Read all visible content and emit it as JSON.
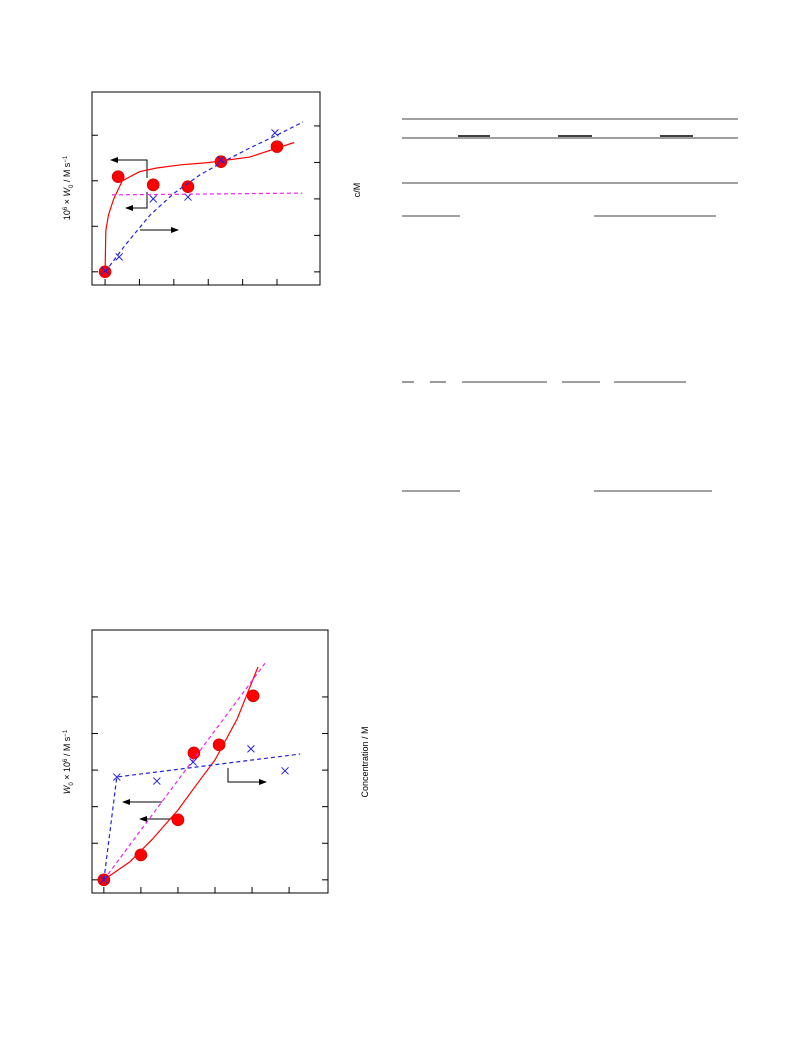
{
  "chart_data": [
    {
      "type": "scatter",
      "y_label_parts": [
        "10",
        "6",
        " × ",
        "W",
        "0",
        " / M s",
        "−1"
      ],
      "y2_label": "c/M",
      "xlim": [
        -0.38,
        6.25
      ],
      "xticks": [
        0,
        1,
        2,
        3,
        4,
        5
      ],
      "ylim": [
        -0.29,
        3.95
      ],
      "yticks": [
        0,
        1,
        2,
        3
      ],
      "y2lim": [
        -0.36,
        4.93
      ],
      "y2ticks": [
        0,
        1,
        2,
        3,
        4
      ],
      "series": [
        {
          "marker": "circle",
          "color": "#ff0000",
          "x": [
            0,
            0.38,
            1.4,
            2.41,
            3.37,
            5.0
          ],
          "values": [
            0,
            2.09,
            1.91,
            1.87,
            2.42,
            2.75
          ]
        },
        {
          "line": "solid",
          "color": "#ff0000",
          "x": [
            0,
            0.02,
            0.1,
            0.25,
            0.5,
            1.0,
            1.5,
            2.2,
            3.0,
            4.2,
            5.5
          ],
          "values": [
            0,
            0.9,
            1.25,
            1.6,
            2.0,
            2.2,
            2.28,
            2.35,
            2.4,
            2.52,
            2.84
          ]
        },
        {
          "marker": "cross",
          "color": "#2222dd",
          "axis": "y2",
          "x": [
            0,
            0.41,
            1.4,
            2.41,
            3.37,
            4.94
          ],
          "values": [
            0.03,
            0.41,
            2.0,
            2.05,
            3.07,
            3.81
          ]
        },
        {
          "line": "dashed",
          "color": "#2222dd",
          "axis": "y2",
          "x": [
            0,
            0.6,
            1.31,
            2.0,
            2.76,
            3.5,
            4.22,
            5.0,
            5.76
          ],
          "values": [
            0,
            0.75,
            1.56,
            2.15,
            2.66,
            3.05,
            3.4,
            3.75,
            4.11
          ]
        },
        {
          "line": "dashed",
          "color": "#ee22ee",
          "axis": "y2",
          "x": [
            0.2,
            5.73
          ],
          "values": [
            2.11,
            2.16
          ]
        }
      ]
    },
    {
      "type": "scatter",
      "y_label_parts": [
        "W",
        "0",
        " × 10",
        "6",
        " / M s",
        "−1"
      ],
      "y2_label": "Concentration / M",
      "xlim": [
        -0.32,
        6.05
      ],
      "xticks": [
        0,
        1,
        2,
        3,
        4,
        5
      ],
      "ylim": [
        -0.36,
        6.83
      ],
      "yticks": [
        0,
        1,
        2,
        3,
        4,
        5
      ],
      "y2lim": [
        -0.36,
        6.83
      ],
      "y2ticks": [
        0,
        1,
        2,
        3,
        4,
        5
      ],
      "series": [
        {
          "marker": "circle",
          "color": "#ff0000",
          "x": [
            0,
            1.0,
            2.0,
            2.43,
            3.11,
            4.03
          ],
          "values": [
            0,
            0.68,
            1.64,
            3.47,
            3.69,
            5.03
          ]
        },
        {
          "line": "solid",
          "color": "#ff0000",
          "x": [
            0,
            0.7,
            1.3,
            2.0,
            2.5,
            3.0,
            3.6,
            4.16
          ],
          "values": [
            0,
            0.49,
            1.1,
            1.91,
            2.6,
            3.28,
            4.4,
            5.82
          ]
        },
        {
          "line": "dashed",
          "color": "#ee22ee",
          "x": [
            0,
            4.38
          ],
          "values": [
            0,
            5.96
          ]
        },
        {
          "marker": "cross",
          "color": "#2222dd",
          "axis": "y2",
          "x": [
            0,
            0.35,
            1.43,
            2.41,
            3.97,
            4.89
          ],
          "values": [
            0,
            2.81,
            2.7,
            3.22,
            3.58,
            2.98
          ]
        },
        {
          "line": "dashed",
          "color": "#2222dd",
          "axis": "y2",
          "x": [
            0,
            0.35,
            5.3
          ],
          "values": [
            0,
            2.81,
            3.44
          ]
        }
      ]
    }
  ]
}
